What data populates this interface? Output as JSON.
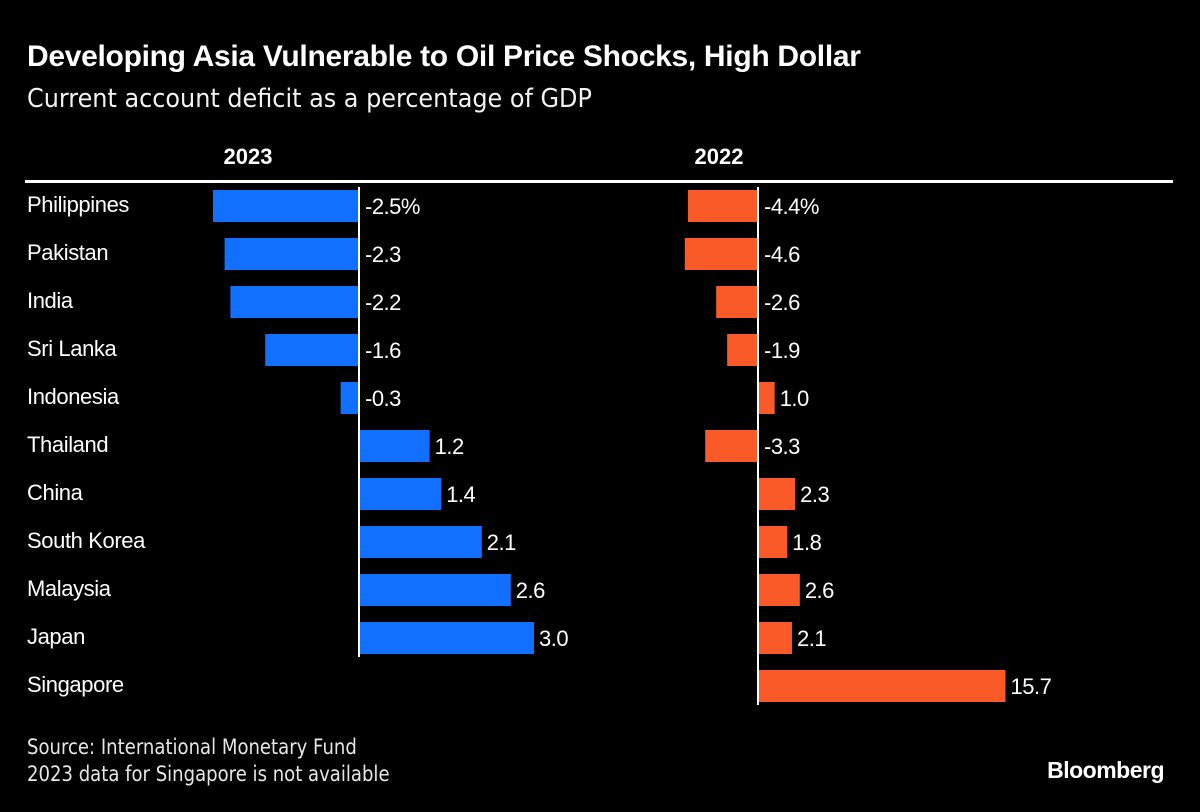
{
  "header": {
    "title": "Developing Asia Vulnerable to Oil Price Shocks, High Dollar",
    "subtitle": "Current account deficit as a percentage of GDP"
  },
  "footer": {
    "source": "Source: International Monetary Fund",
    "note": "2023 data for Singapore is not available",
    "logo": "Bloomberg"
  },
  "chart_data": {
    "type": "bar",
    "orientation": "horizontal",
    "categories": [
      "Philippines",
      "Pakistan",
      "India",
      "Sri Lanka",
      "Indonesia",
      "Thailand",
      "China",
      "South Korea",
      "Malaysia",
      "Japan",
      "Singapore"
    ],
    "series": [
      {
        "name": "2023",
        "color": "#1170ff",
        "values": [
          -2.5,
          -2.3,
          -2.2,
          -1.6,
          -0.3,
          1.2,
          1.4,
          2.1,
          2.6,
          3.0,
          null
        ],
        "labels": [
          "-2.5%",
          "-2.3",
          "-2.2",
          "-1.6",
          "-0.3",
          "1.2",
          "1.4",
          "2.1",
          "2.6",
          "3.0",
          ""
        ]
      },
      {
        "name": "2022",
        "color": "#fa5a28",
        "values": [
          -4.4,
          -4.6,
          -2.6,
          -1.9,
          1.0,
          -3.3,
          2.3,
          1.8,
          2.6,
          2.1,
          15.7
        ],
        "labels": [
          "-4.4%",
          "-4.6",
          "-2.6",
          "-1.9",
          "1.0",
          "-3.3",
          "2.3",
          "1.8",
          "2.6",
          "2.1",
          "15.7"
        ]
      }
    ],
    "grid": false,
    "legend": "none"
  }
}
